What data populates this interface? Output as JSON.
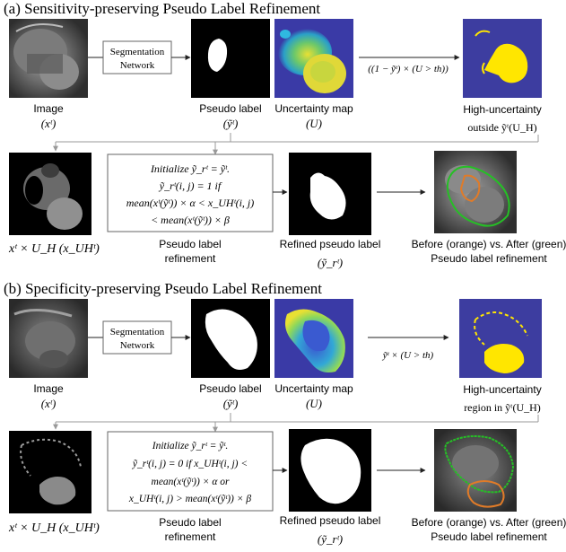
{
  "panel_a": {
    "title": "(a) Sensitivity-preserving Pseudo Label Refinement",
    "seg_network_line1": "Segmentation",
    "seg_network_line2": "Network",
    "arrow_formula": "((1 − ỹᵗ) × (U > th))",
    "image_label": "Image",
    "image_sub": "(xᵗ)",
    "pseudo_label": "Pseudo label",
    "pseudo_sub": "(ỹᵗ)",
    "uncertainty_label": "Uncertainty map",
    "uncertainty_sub": "(U)",
    "highunc_line1": "High-uncertainty",
    "highunc_line2": "outside ỹᵗ(U_H)",
    "xuh_label": "xᵗ × U_H (x_UHᵗ)",
    "box_lines": [
      "Initialize ỹ_rᵗ = ỹᵗ.",
      "ỹ_rᵗ(i, j) = 1 if",
      "mean(xᵗ(ỹᵗ)) × α < x_UHᵗ(i, j)",
      "< mean(xᵗ(ỹᵗ)) × β"
    ],
    "refinement_line1": "Pseudo label",
    "refinement_line2": "refinement",
    "refined_line1": "Refined pseudo label",
    "refined_sub": "(ỹ_rᵗ)",
    "before_after_line1": "Before (orange) vs. After (green)",
    "before_after_line2": "Pseudo label refinement"
  },
  "panel_b": {
    "title": "(b) Specificity-preserving Pseudo Label Refinement",
    "seg_network_line1": "Segmentation",
    "seg_network_line2": "Network",
    "arrow_formula": "ỹᵗ × (U > th)",
    "image_label": "Image",
    "image_sub": "(xᵗ)",
    "pseudo_label": "Pseudo label",
    "pseudo_sub": "(ỹᵗ)",
    "uncertainty_label": "Uncertainty map",
    "uncertainty_sub": "(U)",
    "highunc_line1": "High-uncertainty",
    "highunc_line2": "region in ỹᵗ(U_H)",
    "xuh_label": "xᵗ × U_H (x_UHᵗ)",
    "box_lines": [
      "Initialize ỹ_rᵗ = ỹᵗ.",
      "ỹ_rᵗ(i, j) = 0 if x_UHᵗ(i, j) <",
      "mean(xᵗ(ỹᵗ)) × α or",
      "x_UHᵗ(i, j) > mean(xᵗ(ỹᵗ)) × β"
    ],
    "refinement_line1": "Pseudo label",
    "refinement_line2": "refinement",
    "refined_line1": "Refined pseudo label",
    "refined_sub": "(ỹ_rᵗ)",
    "before_after_line1": "Before (orange) vs. After (green)",
    "before_after_line2": "Pseudo label refinement"
  },
  "colors": {
    "orange": "#e07b28",
    "green": "#25c025",
    "uncertainty_bg": "#3a3aa6",
    "highunc_bg": "#3d3da0",
    "yellow": "#ffe600"
  }
}
